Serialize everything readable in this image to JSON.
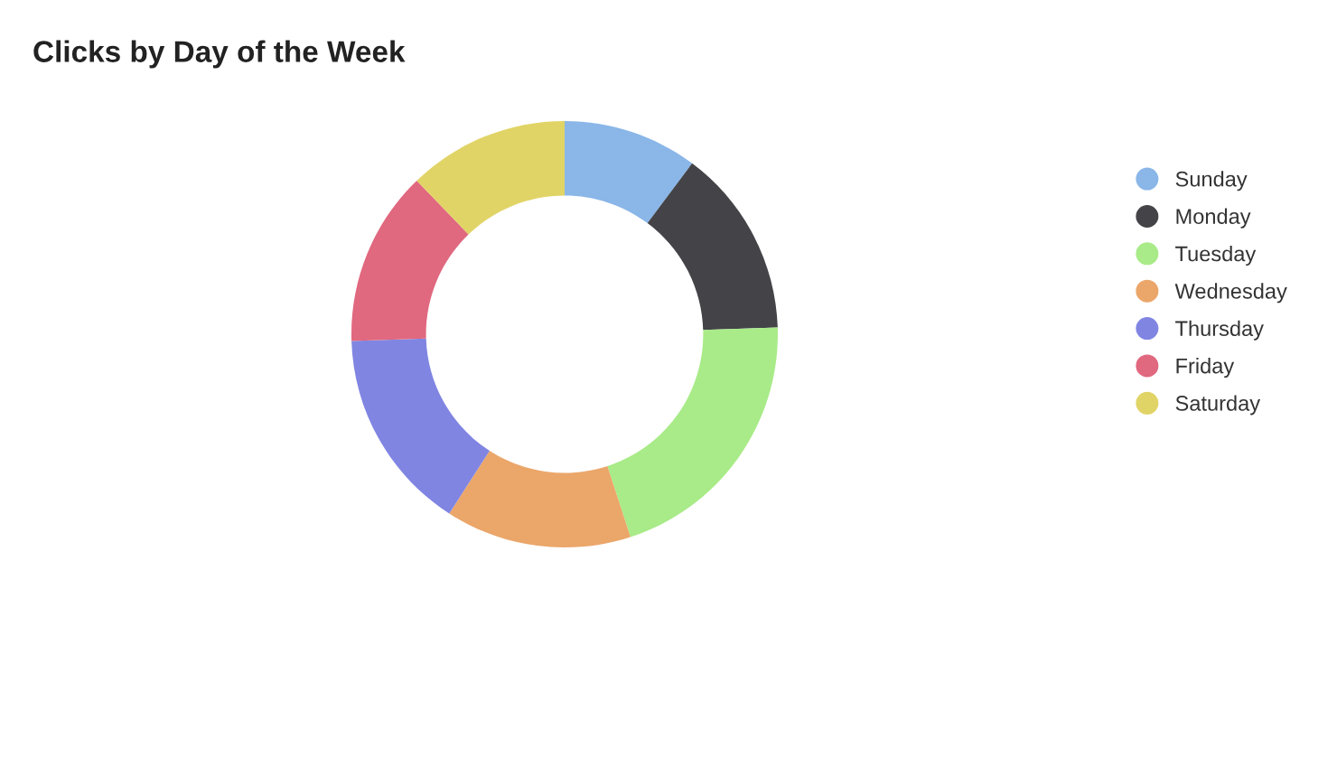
{
  "chart_data": {
    "type": "donut",
    "title": "Clicks by Day of the Week",
    "categories": [
      "Sunday",
      "Monday",
      "Tuesday",
      "Wednesday",
      "Thursday",
      "Friday",
      "Saturday"
    ],
    "values": [
      10.2,
      14.3,
      20.5,
      14.1,
      15.4,
      13.3,
      12.2
    ],
    "colors": [
      "#8ab6e8",
      "#434348",
      "#a8eb88",
      "#eba66a",
      "#8085e2",
      "#e0687f",
      "#e1d466"
    ],
    "legend": "right"
  }
}
